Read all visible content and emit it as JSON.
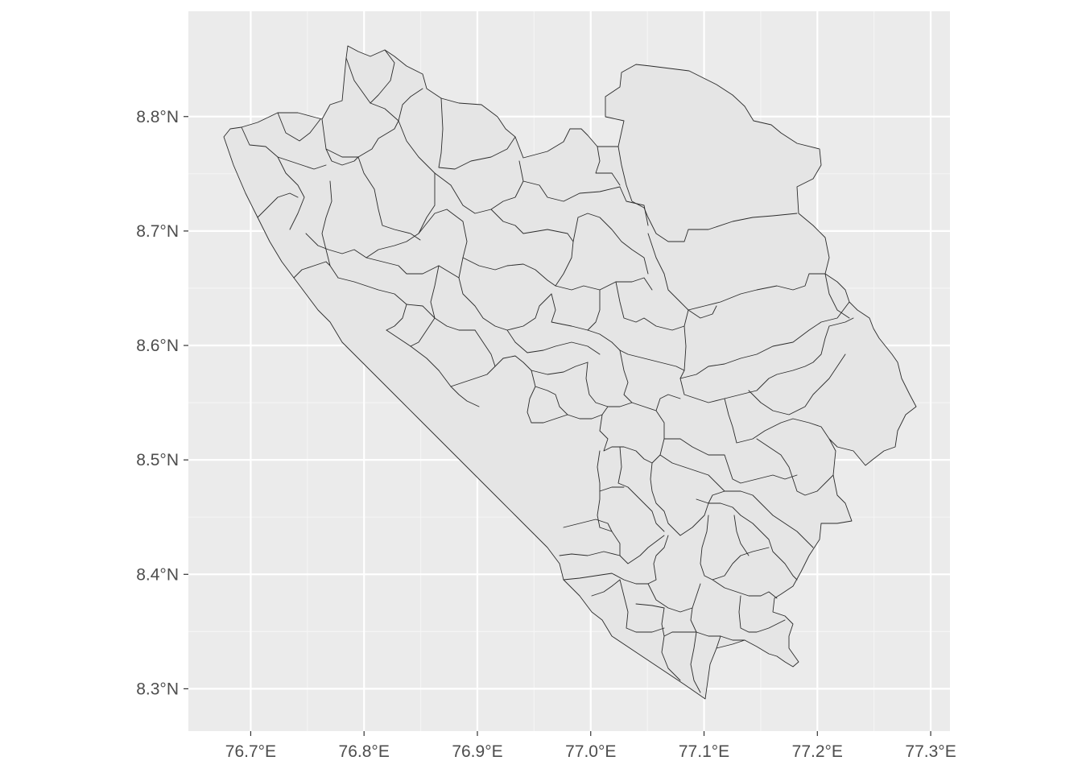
{
  "chart_data": {
    "type": "map",
    "title": "",
    "xlabel": "",
    "ylabel": "",
    "x_ticks": [
      "76.7°E",
      "76.8°E",
      "76.9°E",
      "77.0°E",
      "77.1°E",
      "77.2°E",
      "77.3°E"
    ],
    "y_ticks": [
      "8.8°N",
      "8.7°N",
      "8.6°N",
      "8.5°N",
      "8.4°N",
      "8.3°N"
    ],
    "x_tick_values": [
      76.7,
      76.8,
      76.9,
      77.0,
      77.1,
      77.2,
      77.3
    ],
    "y_tick_values": [
      8.8,
      8.7,
      8.6,
      8.5,
      8.4,
      8.3
    ],
    "xlim": [
      76.645,
      77.317
    ],
    "ylim": [
      8.263,
      8.892
    ],
    "grid": true,
    "legend": "none",
    "region_count_approx": 110,
    "colors": {
      "panel_background": "#ebebeb",
      "region_fill": "#e5e5e5",
      "region_border": "#2b2b2b",
      "gridline": "#ffffff"
    }
  }
}
